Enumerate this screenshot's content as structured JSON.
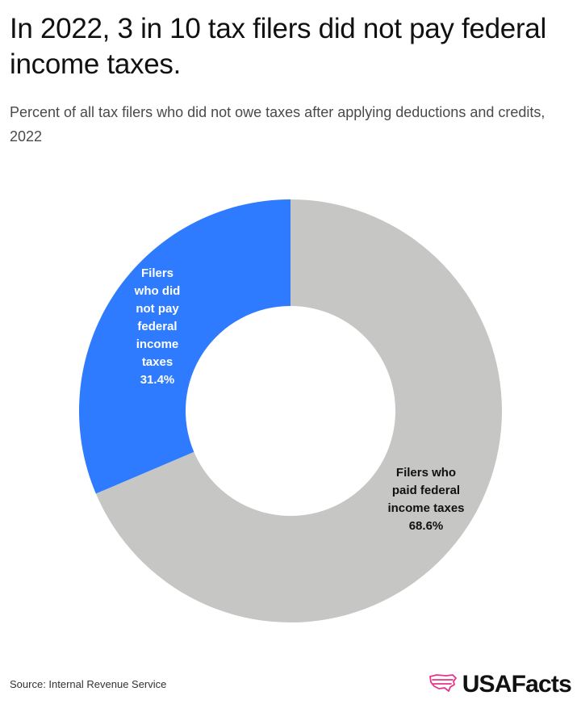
{
  "header": {
    "title": "In 2022, 3 in 10 tax filers did not pay federal income taxes.",
    "subtitle": "Percent of all tax filers who did not owe taxes after applying deductions and credits, 2022"
  },
  "chart_data": {
    "type": "pie",
    "donut": true,
    "slices": [
      {
        "label_lines": [
          "Filers",
          "who did",
          "not pay",
          "federal",
          "income",
          "taxes",
          "31.4%"
        ],
        "value": 31.4,
        "color": "#2f7bff",
        "label_color": "#ffffff"
      },
      {
        "label_lines": [
          "Filers who",
          "paid federal",
          "income taxes",
          "68.6%"
        ],
        "value": 68.6,
        "color": "#c6c6c4",
        "label_color": "#111111"
      }
    ]
  },
  "footer": {
    "source": "Source: Internal Revenue Service",
    "brand": "USAFacts",
    "brand_icon": "usa-map-icon",
    "brand_color": "#e8348a"
  }
}
